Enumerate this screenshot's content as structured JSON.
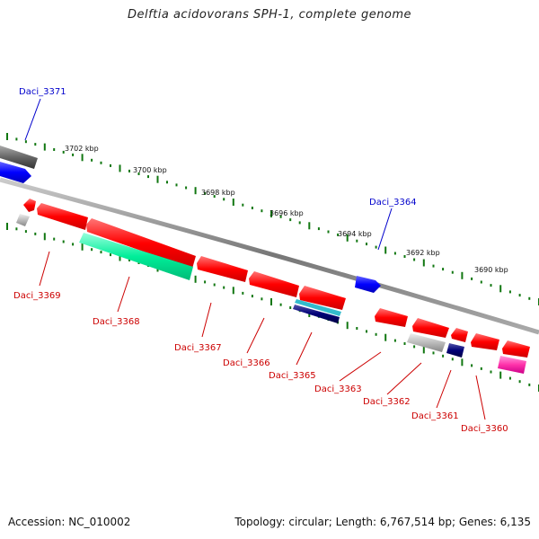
{
  "title": "Delftia acidovorans SPH-1, complete genome",
  "footer": {
    "accession": "Accession: NC_010002",
    "summary": "Topology: circular; Length: 6,767,514 bp; Genes: 6,135"
  },
  "colors": {
    "forward_label": "#0000cc",
    "reverse_label": "#cc0000",
    "tick": "#117711",
    "backbone": "#888888"
  },
  "kbp_ticks": [
    "3702 kbp",
    "3700 kbp",
    "3698 kbp",
    "3696 kbp",
    "3694 kbp",
    "3692 kbp",
    "3690 kbp"
  ],
  "labels": {
    "Daci_3371": "Daci_3371",
    "Daci_3364": "Daci_3364",
    "Daci_3369": "Daci_3369",
    "Daci_3368": "Daci_3368",
    "Daci_3367": "Daci_3367",
    "Daci_3366": "Daci_3366",
    "Daci_3365": "Daci_3365",
    "Daci_3363": "Daci_3363",
    "Daci_3362": "Daci_3362",
    "Daci_3361": "Daci_3361",
    "Daci_3360": "Daci_3360"
  }
}
